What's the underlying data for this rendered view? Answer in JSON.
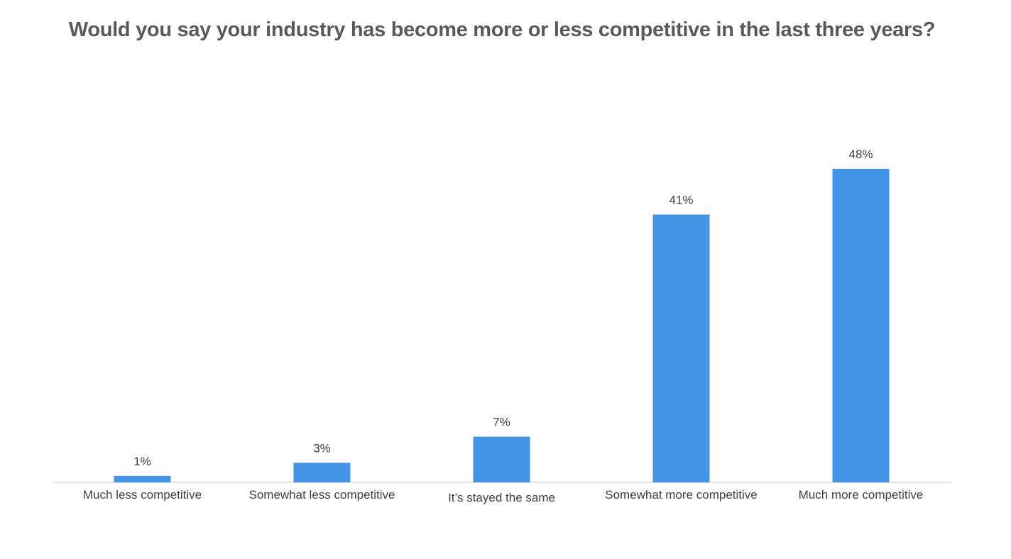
{
  "chart_data": {
    "type": "bar",
    "title": "Would you say your industry has become more or less competitive in the last three years?",
    "categories": [
      "Much less competitive",
      "Somewhat less competitive",
      "It’s stayed the same",
      "Somewhat more competitive",
      "Much more competitive"
    ],
    "values": [
      1,
      3,
      7,
      41,
      48
    ],
    "data_labels": [
      "1%",
      "3%",
      "7%",
      "41%",
      "48%"
    ],
    "xlabel": "",
    "ylabel": "",
    "ylim": [
      0,
      48
    ],
    "grid": false,
    "legend": "none",
    "bar_color": "#4394E4"
  }
}
